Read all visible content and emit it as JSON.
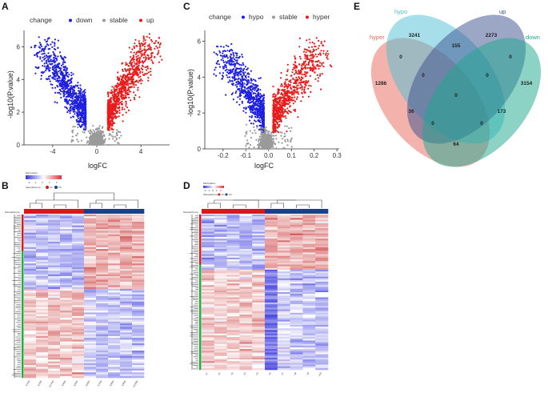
{
  "chart_data": [
    {
      "panel": "A",
      "type": "scatter",
      "subtype": "volcano",
      "xlabel": "logFC",
      "ylabel": "-log10(P.value)",
      "xlim": [
        -6.6,
        6.6
      ],
      "ylim": [
        0,
        7
      ],
      "xticks": [
        -4,
        0,
        4
      ],
      "yticks": [
        0,
        2,
        4,
        6
      ],
      "legend": {
        "title": "change",
        "entries": [
          {
            "name": "down",
            "color": "#1f1fe0"
          },
          {
            "name": "stable",
            "color": "#9a9a9a"
          },
          {
            "name": "up",
            "color": "#e81c1c"
          }
        ]
      },
      "groups": [
        {
          "name": "down",
          "x_range": [
            -6.2,
            -1.0
          ],
          "y_max": 6.6,
          "approx_points": 900
        },
        {
          "name": "stable",
          "x_range": [
            -1.0,
            1.0
          ],
          "y_max": 1.3,
          "approx_points": 700
        },
        {
          "name": "up",
          "x_range": [
            1.0,
            6.0
          ],
          "y_max": 6.8,
          "approx_points": 900
        }
      ]
    },
    {
      "panel": "C",
      "type": "scatter",
      "subtype": "volcano",
      "xlabel": "logFC",
      "ylabel": "-log10(P.value)",
      "xlim": [
        -0.28,
        0.31
      ],
      "ylim": [
        0,
        6.6
      ],
      "xticks": [
        "-0.2",
        "-0.1",
        "0.0",
        "0.1",
        "0.2",
        "0.3"
      ],
      "yticks": [
        0,
        2,
        4,
        6
      ],
      "legend": {
        "title": "change",
        "entries": [
          {
            "name": "hypo",
            "color": "#1f1fe0"
          },
          {
            "name": "stable",
            "color": "#9a9a9a"
          },
          {
            "name": "hyper",
            "color": "#e81c1c"
          }
        ]
      },
      "groups": [
        {
          "name": "hypo",
          "x_range": [
            -0.26,
            -0.02
          ],
          "y_max": 5.9,
          "approx_points": 800
        },
        {
          "name": "stable",
          "x_range": [
            -0.1,
            0.15
          ],
          "y_max": 1.5,
          "approx_points": 700
        },
        {
          "name": "hyper",
          "x_range": [
            0.02,
            0.29
          ],
          "y_max": 6.2,
          "approx_points": 800
        }
      ]
    },
    {
      "panel": "E",
      "type": "venn",
      "sets": [
        {
          "name": "hyper",
          "color": "#e8685a"
        },
        {
          "name": "hypo",
          "color": "#4dbfd6"
        },
        {
          "name": "up",
          "color": "#3a4f8e"
        },
        {
          "name": "down",
          "color": "#1aa88e"
        }
      ],
      "counts": [
        {
          "region": "hypo only",
          "value": 3241
        },
        {
          "region": "up only",
          "value": 2273
        },
        {
          "region": "hypo & up",
          "value": 155
        },
        {
          "region": "hyper only",
          "value": 1286
        },
        {
          "region": "down only",
          "value": 3154
        },
        {
          "region": "hyper & hypo",
          "value": 0
        },
        {
          "region": "up & down",
          "value": 0
        },
        {
          "region": "hyper & hypo & up",
          "value": 0
        },
        {
          "region": "hypo & up & down",
          "value": 0
        },
        {
          "region": "all four",
          "value": 0
        },
        {
          "region": "hyper & up",
          "value": 36
        },
        {
          "region": "hypo & down",
          "value": 173
        },
        {
          "region": "hyper & up & down",
          "value": 0
        },
        {
          "region": "hyper & hypo & down",
          "value": 0
        },
        {
          "region": "hyper & down",
          "value": 64
        }
      ]
    },
    {
      "panel": "B",
      "type": "heatmap",
      "legend_title": "Expression",
      "scale_ticks": [
        "-2",
        "-1",
        "0",
        "1",
        "2"
      ],
      "group_legend": "SampleGroup",
      "group_names": [
        "C1",
        "C2"
      ],
      "row_annotation": "SampleGroup",
      "group_colors": {
        "C1": "#d7191c",
        "C2": "#1b3f8f"
      },
      "columns": [
        "K1No",
        "K2No",
        "K17No",
        "K4No",
        "K5No",
        "K6No",
        "K7No",
        "K8No",
        "K9No",
        "K10No"
      ],
      "column_groups": [
        "C1",
        "C1",
        "C1",
        "C1",
        "C1",
        "C2",
        "C2",
        "C2",
        "C2",
        "C2"
      ]
    },
    {
      "panel": "D",
      "type": "heatmap",
      "legend_title": "Methylation",
      "scale_ticks": [
        "-2",
        "-1",
        "0",
        "1",
        "2"
      ],
      "group_legend": "SampleGroup",
      "group_names": [
        "C1",
        "C2"
      ],
      "row_annotation": "SampleGroup",
      "group_colors": {
        "C1": "#d7191c",
        "C2": "#1b3f8f"
      },
      "columns": [
        "c1",
        "c2",
        "c3",
        "c4",
        "c5",
        "c6",
        "c7",
        "c8",
        "c9",
        "c10"
      ],
      "column_groups": [
        "C1",
        "C1",
        "C1",
        "C1",
        "C1",
        "C2",
        "C2",
        "C2",
        "C2",
        "C2"
      ]
    }
  ]
}
